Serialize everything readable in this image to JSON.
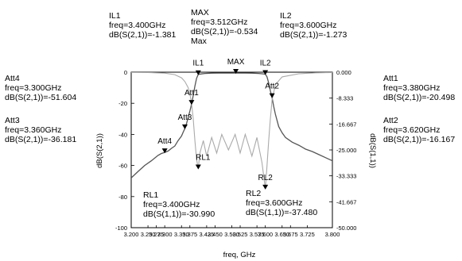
{
  "chart_data": {
    "type": "line",
    "xlabel": "freq, GHz",
    "ylabel_left": "dB(S(2,1))",
    "ylabel_right": "dB(S(1,1))",
    "xlim": [
      3.2,
      3.8
    ],
    "ylim_left": [
      -100,
      0
    ],
    "ylim_right": [
      -50,
      0
    ],
    "x_ticks": [
      "3.200",
      "3.250",
      "3.275",
      "3.300",
      "3.350",
      "3.375",
      "3.425",
      "3.450",
      "3.500",
      "3.525",
      "3.575",
      "3.600",
      "3.650",
      "3.675",
      "3.725",
      "3.800"
    ],
    "x_tick_values": [
      3.2,
      3.25,
      3.275,
      3.3,
      3.35,
      3.375,
      3.425,
      3.45,
      3.5,
      3.525,
      3.575,
      3.6,
      3.65,
      3.675,
      3.725,
      3.8
    ],
    "y_ticks_left": [
      "0",
      "-20",
      "-40",
      "-60",
      "-80",
      "-100"
    ],
    "y_tick_values_left": [
      0,
      -20,
      -40,
      -60,
      -80,
      -100
    ],
    "y_ticks_right": [
      "0.000",
      "-8.333",
      "-16.667",
      "-25.000",
      "-33.333",
      "-41.667",
      "-50.000"
    ],
    "y_tick_values_right": [
      0,
      -8.333,
      -16.667,
      -25,
      -33.333,
      -41.667,
      -50
    ],
    "series": [
      {
        "id": "s21",
        "axis": "left",
        "color": "#555555",
        "x": [
          3.2,
          3.22,
          3.24,
          3.26,
          3.28,
          3.29,
          3.3,
          3.31,
          3.32,
          3.33,
          3.34,
          3.35,
          3.355,
          3.36,
          3.365,
          3.37,
          3.375,
          3.38,
          3.385,
          3.39,
          3.395,
          3.4,
          3.42,
          3.44,
          3.46,
          3.48,
          3.5,
          3.512,
          3.52,
          3.54,
          3.56,
          3.58,
          3.59,
          3.6,
          3.605,
          3.61,
          3.615,
          3.62,
          3.625,
          3.63,
          3.64,
          3.65,
          3.66,
          3.68,
          3.7,
          3.72,
          3.74,
          3.76,
          3.78,
          3.8
        ],
        "y": [
          -68,
          -64,
          -60,
          -57,
          -53.5,
          -52.3,
          -51.6,
          -50.7,
          -49,
          -47.5,
          -44,
          -41,
          -38.5,
          -36.2,
          -33,
          -29,
          -25,
          -20.5,
          -15,
          -9,
          -4,
          -1.381,
          -0.8,
          -0.6,
          -0.55,
          -0.54,
          -0.54,
          -0.534,
          -0.54,
          -0.55,
          -0.6,
          -0.8,
          -1.0,
          -1.273,
          -3,
          -7,
          -12,
          -16.2,
          -22,
          -27,
          -35,
          -39,
          -42,
          -45,
          -47,
          -49.5,
          -51,
          -53,
          -55,
          -57
        ]
      },
      {
        "id": "s11",
        "axis": "right",
        "color": "#aaaaaa",
        "x": [
          3.2,
          3.25,
          3.3,
          3.33,
          3.35,
          3.36,
          3.37,
          3.375,
          3.38,
          3.385,
          3.39,
          3.395,
          3.4,
          3.405,
          3.415,
          3.425,
          3.44,
          3.455,
          3.47,
          3.49,
          3.51,
          3.525,
          3.54,
          3.56,
          3.575,
          3.59,
          3.6,
          3.605,
          3.61,
          3.615,
          3.62,
          3.63,
          3.65,
          3.7,
          3.75,
          3.8
        ],
        "y": [
          -0.05,
          -0.1,
          -0.3,
          -0.8,
          -1.8,
          -3,
          -5,
          -7,
          -10,
          -15,
          -22,
          -28,
          -31,
          -26,
          -22,
          -27,
          -21,
          -26,
          -20,
          -25,
          -20,
          -26,
          -20,
          -27,
          -21,
          -29,
          -37.5,
          -30,
          -22,
          -15,
          -9,
          -4,
          -1.5,
          -0.5,
          -0.2,
          -0.1
        ]
      }
    ],
    "markers": [
      {
        "id": "IL1",
        "label": "IL1",
        "axis": "left",
        "x": 3.4,
        "y": -1.381,
        "label_pos": "above",
        "ann": [
          "IL1",
          "freq=3.400GHz",
          "dB(S(2,1))=-1.381"
        ]
      },
      {
        "id": "MAX",
        "label": "MAX",
        "axis": "left",
        "x": 3.512,
        "y": -0.534,
        "label_pos": "above",
        "ann": [
          "MAX",
          "freq=3.512GHz",
          "dB(S(2,1))=-0.534",
          "Max"
        ]
      },
      {
        "id": "IL2",
        "label": "IL2",
        "axis": "left",
        "x": 3.6,
        "y": -1.273,
        "label_pos": "above",
        "ann": [
          "IL2",
          "freq=3.600GHz",
          "dB(S(2,1))=-1.273"
        ]
      },
      {
        "id": "Att1",
        "label": "Att1",
        "axis": "left",
        "x": 3.38,
        "y": -20.498,
        "label_pos": "above",
        "ann": [
          "Att1",
          "freq=3.380GHz",
          "dB(S(2,1))=-20.498"
        ]
      },
      {
        "id": "Att2",
        "label": "Att2",
        "axis": "left",
        "x": 3.62,
        "y": -16.167,
        "label_pos": "above",
        "ann": [
          "Att2",
          "freq=3.620GHz",
          "dB(S(2,1))=-16.167"
        ]
      },
      {
        "id": "Att3",
        "label": "Att3",
        "axis": "left",
        "x": 3.36,
        "y": -36.181,
        "label_pos": "above",
        "ann": [
          "Att3",
          "freq=3.360GHz",
          "dB(S(2,1))=-36.181"
        ]
      },
      {
        "id": "Att4",
        "label": "Att4",
        "axis": "left",
        "x": 3.3,
        "y": -51.604,
        "label_pos": "above",
        "ann": [
          "Att4",
          "freq=3.300GHz",
          "dB(S(2,1))=-51.604"
        ]
      },
      {
        "id": "RL1",
        "label": "RL1",
        "axis": "right",
        "x": 3.4,
        "y": -30.99,
        "label_pos": "above",
        "ann": [
          "RL1",
          "freq=3.400GHz",
          "dB(S(1,1))=-30.990"
        ]
      },
      {
        "id": "RL2",
        "label": "RL2",
        "axis": "right",
        "x": 3.6,
        "y": -37.48,
        "label_pos": "above",
        "ann": [
          "RL2",
          "freq=3.600GHz",
          "dB(S(1,1))=-37.480"
        ]
      }
    ],
    "grid": false,
    "legend": "none"
  }
}
